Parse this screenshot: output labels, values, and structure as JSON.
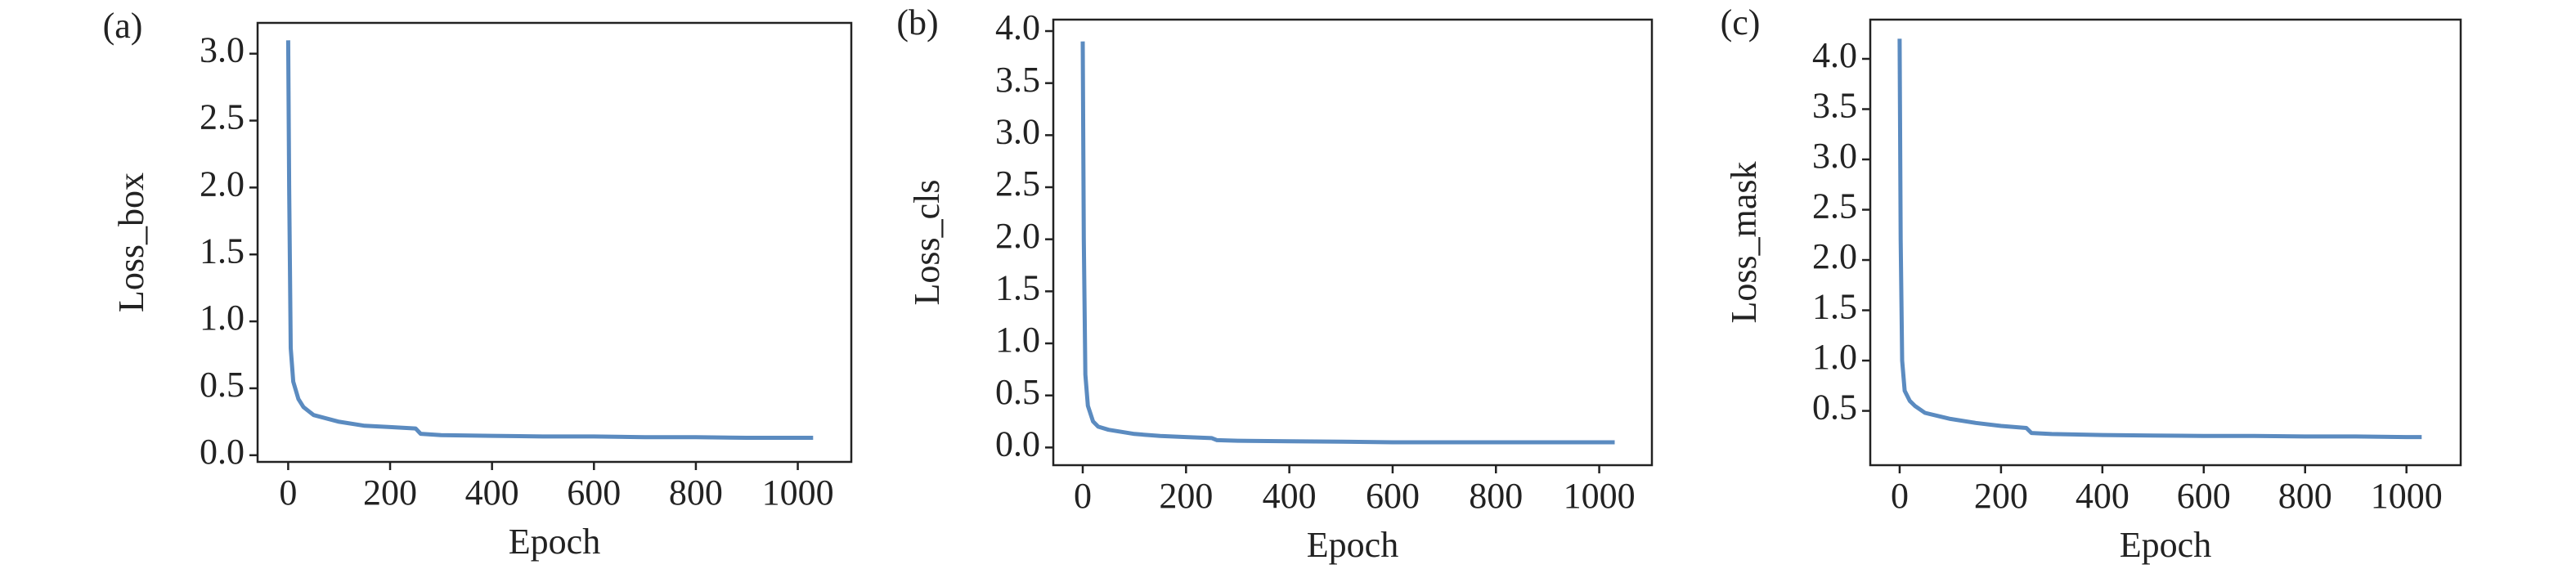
{
  "chart_data": [
    {
      "type": "line",
      "label": "(a)",
      "x_label": "Epoch",
      "y_label": "Loss_box",
      "color": "#5b8bc0",
      "x": [
        0,
        2,
        5,
        10,
        20,
        30,
        50,
        100,
        150,
        200,
        250,
        260,
        300,
        400,
        500,
        600,
        700,
        800,
        900,
        1000,
        1030
      ],
      "values": [
        3.1,
        2.0,
        0.8,
        0.55,
        0.42,
        0.36,
        0.3,
        0.25,
        0.22,
        0.21,
        0.2,
        0.16,
        0.15,
        0.145,
        0.14,
        0.14,
        0.135,
        0.135,
        0.13,
        0.13,
        0.13
      ],
      "xlim": [
        -60,
        1105
      ],
      "ylim": [
        -0.05,
        3.23
      ],
      "xticks": [
        0,
        200,
        400,
        600,
        800,
        1000
      ],
      "yticks": [
        {
          "value": 0,
          "label": "0.0"
        },
        0.5,
        {
          "value": 1,
          "label": "1.0"
        },
        1.5,
        {
          "value": 2,
          "label": "2.0"
        },
        2.5,
        {
          "value": 3,
          "label": "3.0"
        }
      ]
    },
    {
      "type": "line",
      "label": "(b)",
      "x_label": "Epoch",
      "y_label": "Loss_cls",
      "color": "#5b8bc0",
      "x": [
        0,
        2,
        5,
        10,
        20,
        30,
        50,
        100,
        150,
        200,
        250,
        260,
        300,
        400,
        500,
        600,
        700,
        800,
        900,
        1000,
        1030
      ],
      "values": [
        3.9,
        2.0,
        0.7,
        0.4,
        0.25,
        0.2,
        0.17,
        0.13,
        0.11,
        0.1,
        0.09,
        0.07,
        0.065,
        0.06,
        0.055,
        0.05,
        0.05,
        0.05,
        0.05,
        0.05,
        0.05
      ],
      "xlim": [
        -57,
        1102
      ],
      "ylim": [
        -0.17,
        4.11
      ],
      "xticks": [
        0,
        200,
        400,
        600,
        800,
        1000
      ],
      "yticks": [
        {
          "value": 0,
          "label": "0.0"
        },
        0.5,
        {
          "value": 1,
          "label": "1.0"
        },
        1.5,
        {
          "value": 2,
          "label": "2.0"
        },
        2.5,
        {
          "value": 3,
          "label": "3.0"
        },
        3.5,
        {
          "value": 4,
          "label": "4.0"
        }
      ]
    },
    {
      "type": "line",
      "label": "(c)",
      "x_label": "Epoch",
      "y_label": "Loss_mask",
      "color": "#5b8bc0",
      "x": [
        0,
        2,
        5,
        10,
        20,
        30,
        50,
        100,
        150,
        200,
        250,
        260,
        300,
        400,
        500,
        600,
        700,
        800,
        900,
        1000,
        1030
      ],
      "values": [
        4.2,
        2.2,
        1.0,
        0.7,
        0.6,
        0.55,
        0.48,
        0.42,
        0.38,
        0.35,
        0.33,
        0.28,
        0.27,
        0.26,
        0.255,
        0.25,
        0.25,
        0.245,
        0.245,
        0.24,
        0.24
      ],
      "xlim": [
        -58,
        1107
      ],
      "ylim": [
        -0.04,
        4.39
      ],
      "xticks": [
        0,
        200,
        400,
        600,
        800,
        1000
      ],
      "yticks": [
        0.5,
        {
          "value": 1,
          "label": "1.0"
        },
        1.5,
        {
          "value": 2,
          "label": "2.0"
        },
        2.5,
        {
          "value": 3,
          "label": "3.0"
        },
        3.5,
        {
          "value": 4,
          "label": "4.0"
        }
      ]
    }
  ]
}
